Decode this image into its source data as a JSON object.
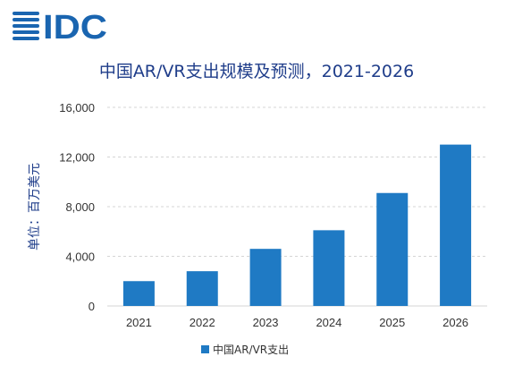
{
  "logo": {
    "text": "IDC",
    "color": "#1a65b0"
  },
  "chart_data": {
    "type": "bar",
    "title": "中国AR/VR支出规模及预测，2021-2026",
    "ylabel": "单位：百万美元",
    "xlabel": "",
    "categories": [
      "2021",
      "2022",
      "2023",
      "2024",
      "2025",
      "2026"
    ],
    "series": [
      {
        "name": "中国AR/VR支出",
        "color": "#1f7ac4",
        "values": [
          2000,
          2800,
          4600,
          6100,
          9100,
          13000
        ]
      }
    ],
    "ylim": [
      0,
      16000
    ],
    "yticks": [
      0,
      4000,
      8000,
      12000,
      16000
    ],
    "ytick_labels": [
      "0",
      "4,000",
      "8,000",
      "12,000",
      "16,000"
    ],
    "grid": true,
    "legend_position": "bottom"
  }
}
